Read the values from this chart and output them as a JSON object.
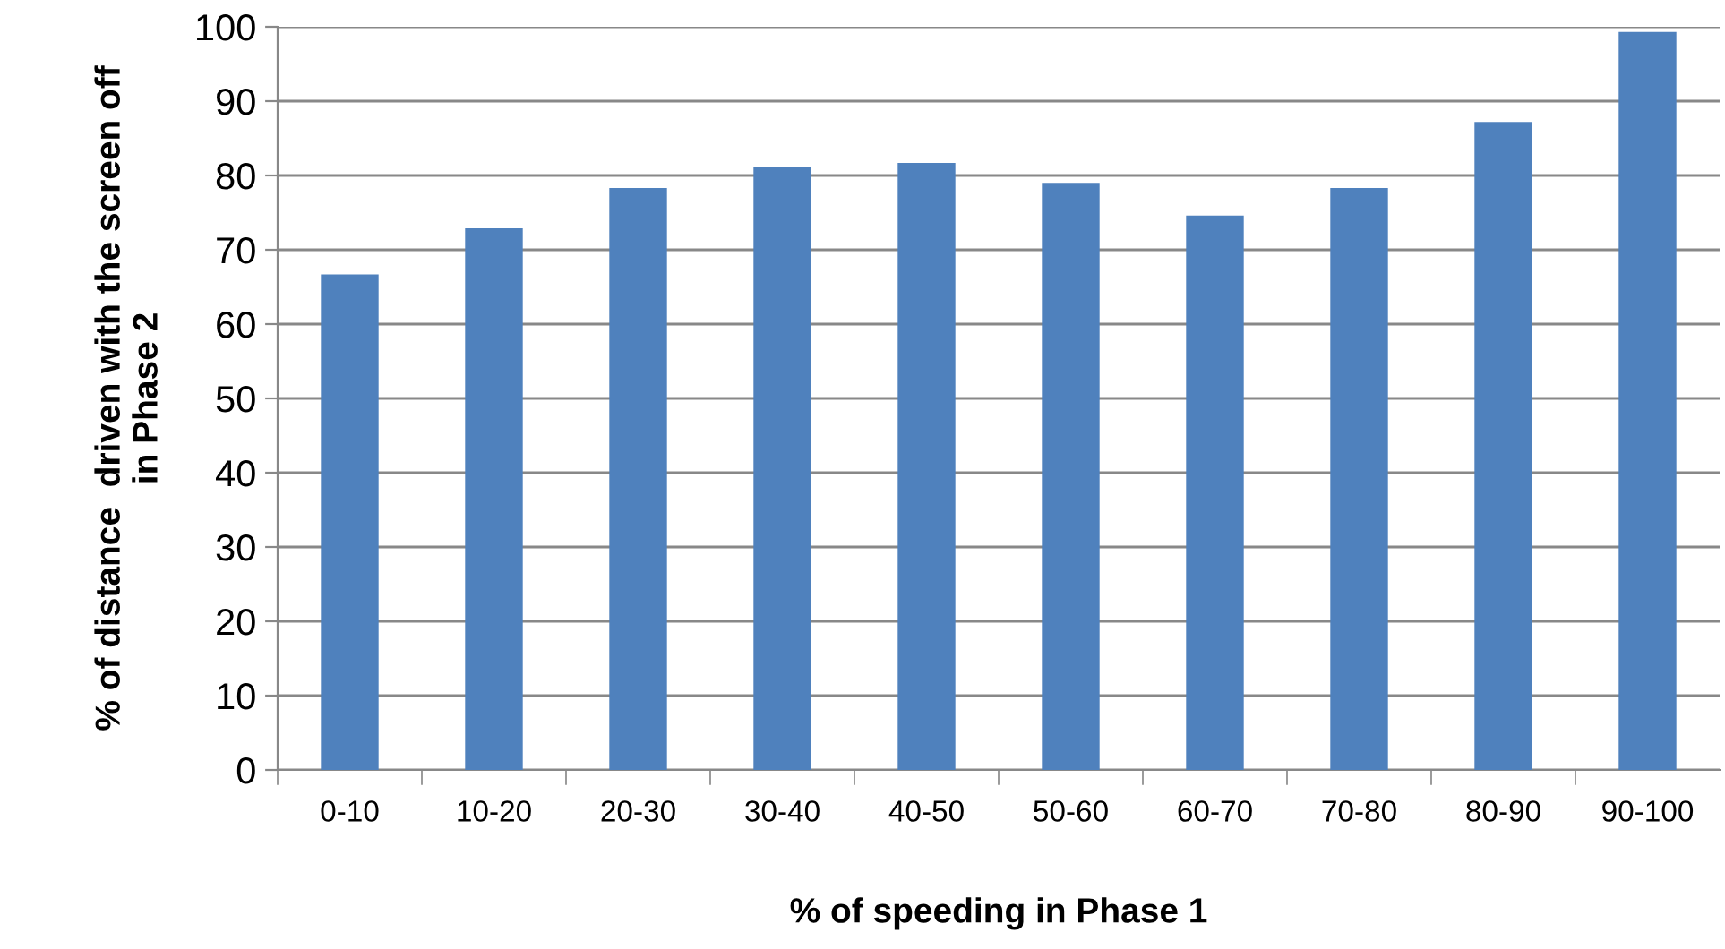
{
  "chart_data": {
    "type": "bar",
    "xlabel": "% of speeding in Phase 1",
    "ylabel": "% of distance  driven with the screen off\nin Phase 2",
    "categories": [
      "0-10",
      "10-20",
      "20-30",
      "30-40",
      "40-50",
      "50-60",
      "60-70",
      "70-80",
      "80-90",
      "90-100"
    ],
    "values": [
      66.7,
      72.9,
      78.3,
      81.2,
      81.7,
      79.0,
      74.6,
      78.3,
      87.2,
      99.3
    ],
    "color": "#4f81bd",
    "ylim": [
      0,
      100
    ],
    "yticks": [
      0,
      10,
      20,
      30,
      40,
      50,
      60,
      70,
      80,
      90,
      100
    ],
    "grid": "y"
  }
}
